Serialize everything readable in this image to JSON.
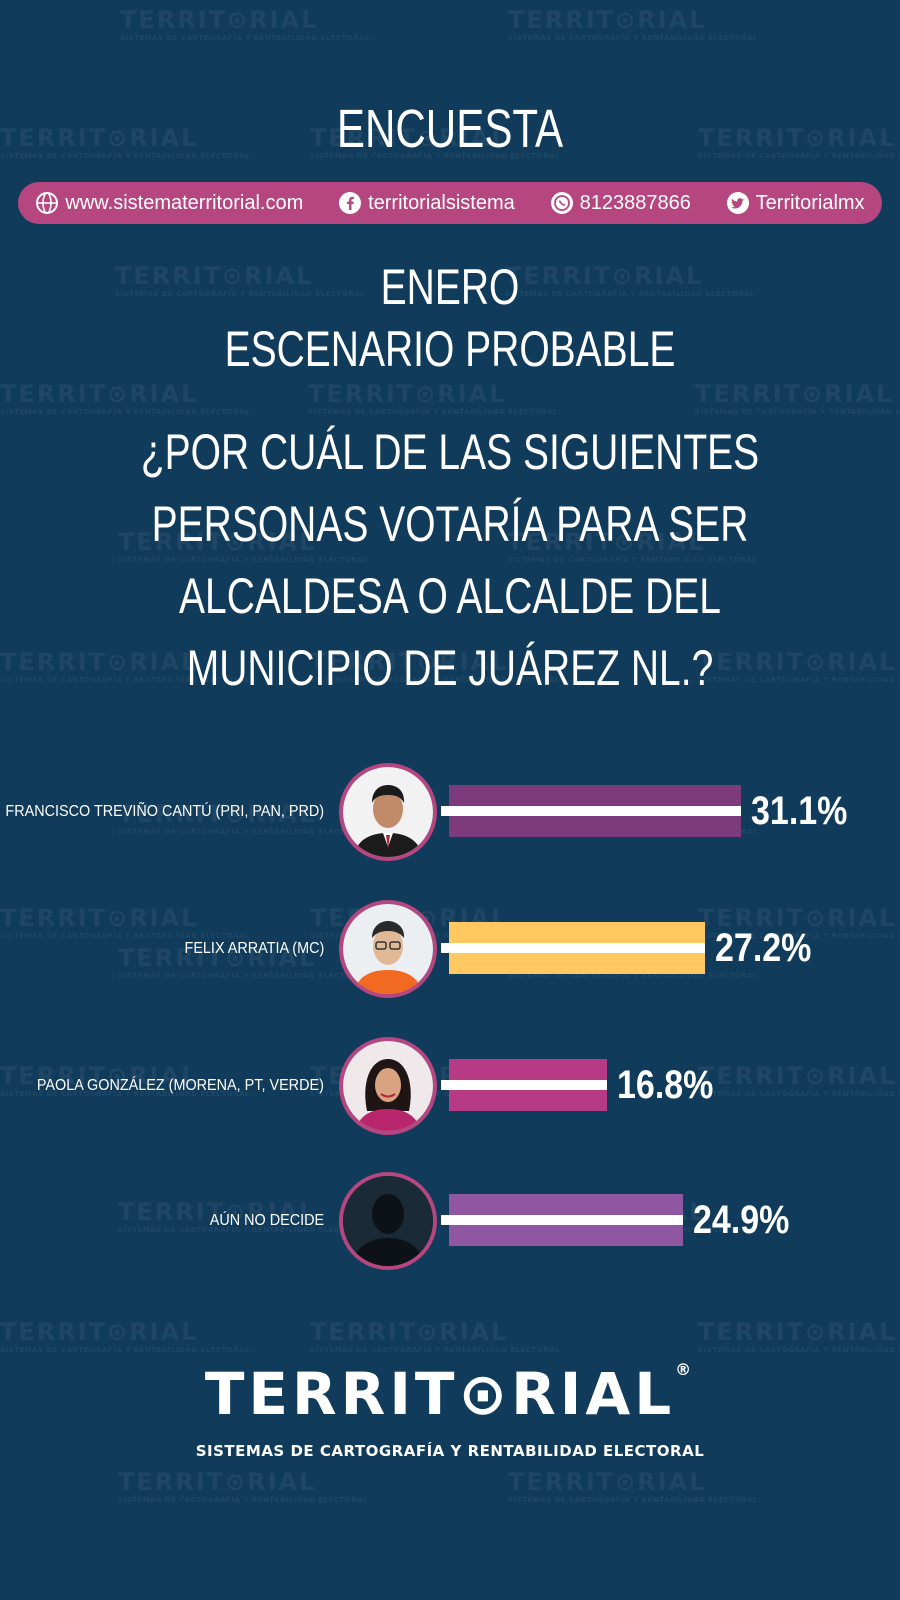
{
  "header": {
    "title": "ENCUESTA"
  },
  "contact": {
    "website": "www.sistematerritorial.com",
    "facebook": "territorialsistema",
    "whatsapp": "8123887866",
    "twitter": "Territorialmx"
  },
  "subtitle": {
    "line1": "ENERO",
    "line2": "ESCENARIO PROBABLE"
  },
  "question": {
    "line1": "¿POR CUÁL DE LAS SIGUIENTES",
    "line2": "PERSONAS VOTARÍA PARA SER",
    "line3": "ALCALDESA O ALCALDE DEL",
    "line4": "MUNICIPIO DE JUÁREZ NL.?"
  },
  "chart_data": {
    "type": "bar",
    "orientation": "horizontal",
    "categories": [
      "FRANCISCO TREVIÑO CANTÚ (PRI, PAN, PRD)",
      "FELIX ARRATIA (MC)",
      "PAOLA GONZÁLEZ (MORENA, PT, VERDE)",
      "AÚN NO DECIDE"
    ],
    "values": [
      31.1,
      27.2,
      16.8,
      24.9
    ],
    "value_labels": [
      "31.1%",
      "27.2%",
      "16.8%",
      "24.9%"
    ],
    "colors": [
      "#7d3b7c",
      "#ffc861",
      "#b73a84",
      "#8f56a2"
    ]
  },
  "watermark": {
    "word": "TERRIT⊙RIAL",
    "tagline": "SISTEMAS DE CARTOGRAFÍA Y RENTABILIDAD ELECTORAL"
  },
  "footer": {
    "logo": "TERRIT⊙RIAL",
    "reg": "®",
    "tagline": "SISTEMAS DE CARTOGRAFÍA Y RENTABILIDAD ELECTORAL"
  }
}
